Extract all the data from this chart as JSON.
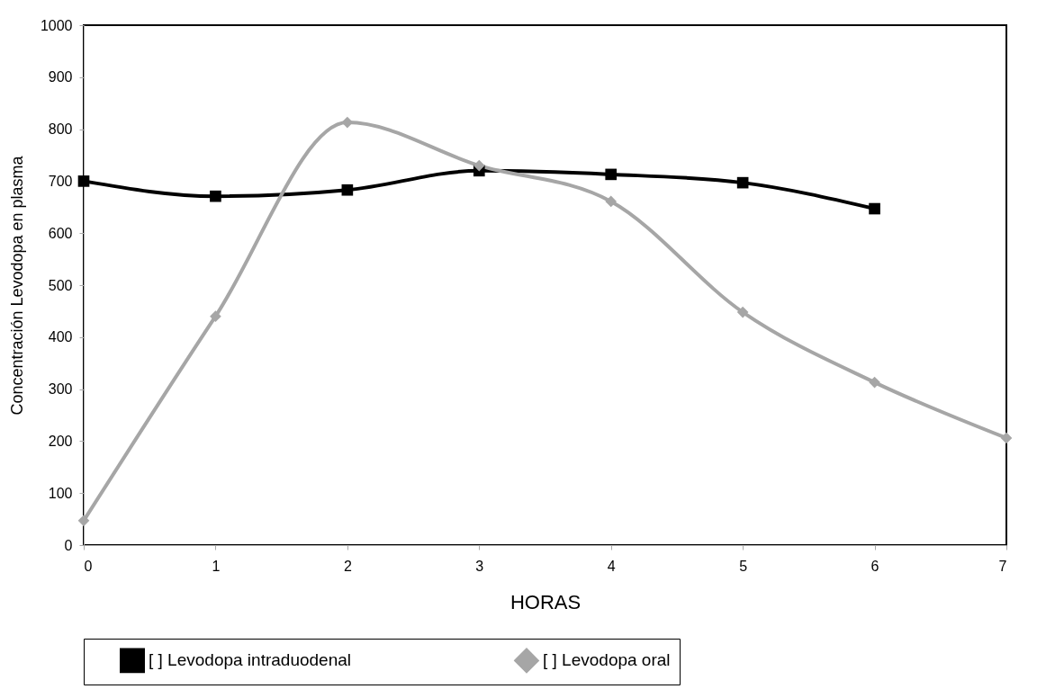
{
  "chart_data": {
    "type": "line",
    "xlabel": "HORAS",
    "ylabel": "Concentración Levodopa en plasma",
    "x": [
      0,
      1,
      2,
      3,
      4,
      5,
      6,
      7
    ],
    "series": [
      {
        "name": "[ ] Levodopa intraduodenal",
        "color": "#000000",
        "marker": "square",
        "values": [
          700,
          671,
          683,
          720,
          713,
          697,
          647,
          null
        ]
      },
      {
        "name": "[ ] Levodopa oral",
        "color": "#a6a6a6",
        "marker": "diamond",
        "values": [
          47,
          440,
          813,
          730,
          661,
          448,
          313,
          206
        ]
      }
    ],
    "xlim": [
      0,
      7
    ],
    "xticks": [
      0,
      1,
      2,
      3,
      4,
      5,
      6,
      7
    ],
    "ylim": [
      0,
      1000
    ],
    "yticks": [
      0,
      100,
      200,
      300,
      400,
      500,
      600,
      700,
      800,
      900,
      1000
    ],
    "grid": false,
    "legend": "bottom",
    "line_style": "solid"
  }
}
